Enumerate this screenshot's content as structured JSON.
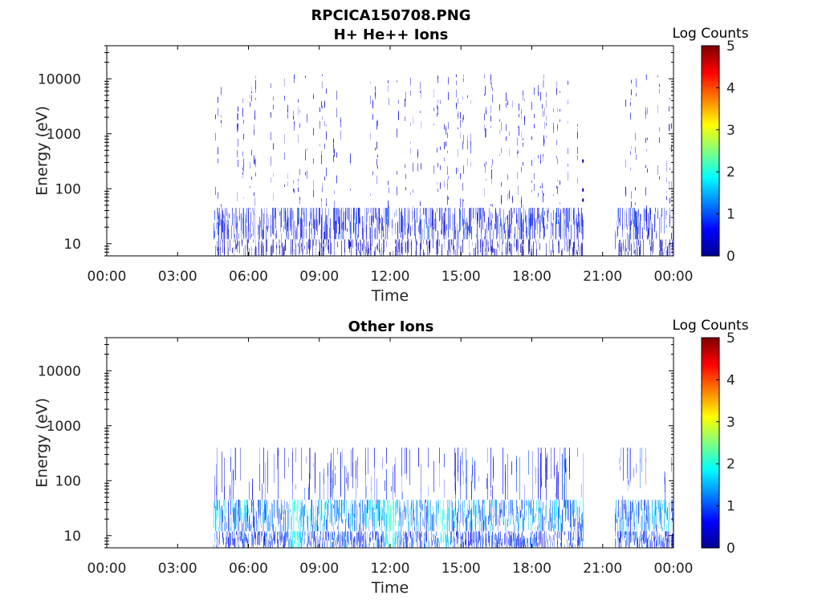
{
  "figure": {
    "title_line1": "RPCICA150708.PNG"
  },
  "colorscale": {
    "label": "Log Counts",
    "ticks": [
      "0",
      "1",
      "2",
      "3",
      "4",
      "5"
    ],
    "min": 0,
    "max": 5,
    "colors": [
      "#00008f",
      "#0000ff",
      "#0080ff",
      "#00ffff",
      "#80ff80",
      "#ffff00",
      "#ff8000",
      "#ff0000",
      "#800000"
    ]
  },
  "chart_data": [
    {
      "type": "heatmap",
      "title": "H+ He++ Ions",
      "xlabel": "Time",
      "ylabel": "Energy (eV)",
      "yscale": "log",
      "xlim": [
        "00:00",
        "24:00"
      ],
      "ylim": [
        6,
        40000
      ],
      "xticks": [
        "00:00",
        "03:00",
        "06:00",
        "09:00",
        "12:00",
        "15:00",
        "18:00",
        "21:00",
        "00:00"
      ],
      "yticks": [
        "10",
        "100",
        "1000",
        "10000"
      ],
      "colorbar_label": "Log Counts",
      "colorbar_range": [
        0,
        5
      ],
      "data_intervals": [
        {
          "start": "04:30",
          "end": "20:10"
        },
        {
          "start": "21:30",
          "end": "24:00"
        }
      ],
      "bands": [
        {
          "energy_range_eV": [
            6,
            12
          ],
          "log_counts": 0.3,
          "density": 0.5
        },
        {
          "energy_range_eV": [
            12,
            45
          ],
          "log_counts": 0.8,
          "density": 0.75
        },
        {
          "energy_range_eV": [
            45,
            12000
          ],
          "log_counts": 0.5,
          "density": 0.22
        }
      ],
      "spots": [
        {
          "time": "20:10",
          "energy_eV": 320,
          "log_counts": 0.2
        },
        {
          "time": "20:10",
          "energy_eV": 95,
          "log_counts": 0.2
        },
        {
          "time": "20:10",
          "energy_eV": 62,
          "log_counts": 0.2
        }
      ]
    },
    {
      "type": "heatmap",
      "title": "Other Ions",
      "xlabel": "Time",
      "ylabel": "Energy (eV)",
      "yscale": "log",
      "xlim": [
        "00:00",
        "24:00"
      ],
      "ylim": [
        6,
        40000
      ],
      "xticks": [
        "00:00",
        "03:00",
        "06:00",
        "09:00",
        "12:00",
        "15:00",
        "18:00",
        "21:00",
        "00:00"
      ],
      "yticks": [
        "10",
        "100",
        "1000",
        "10000"
      ],
      "colorbar_label": "Log Counts",
      "colorbar_range": [
        0,
        5
      ],
      "data_intervals": [
        {
          "start": "04:30",
          "end": "20:10"
        },
        {
          "start": "21:30",
          "end": "24:00"
        }
      ],
      "bands": [
        {
          "energy_range_eV": [
            6,
            12
          ],
          "log_counts": 1.0,
          "density": 0.85
        },
        {
          "energy_range_eV": [
            12,
            45
          ],
          "log_counts": 1.5,
          "density": 0.95
        },
        {
          "energy_range_eV": [
            45,
            400
          ],
          "log_counts": 0.8,
          "density": 0.25
        }
      ],
      "hotspots": [
        {
          "time": "08:00",
          "energy_eV": 35,
          "log_counts": 2.0
        },
        {
          "time": "12:00",
          "energy_eV": 35,
          "log_counts": 2.2
        },
        {
          "time": "14:15",
          "energy_eV": 35,
          "log_counts": 2.0
        }
      ]
    }
  ]
}
